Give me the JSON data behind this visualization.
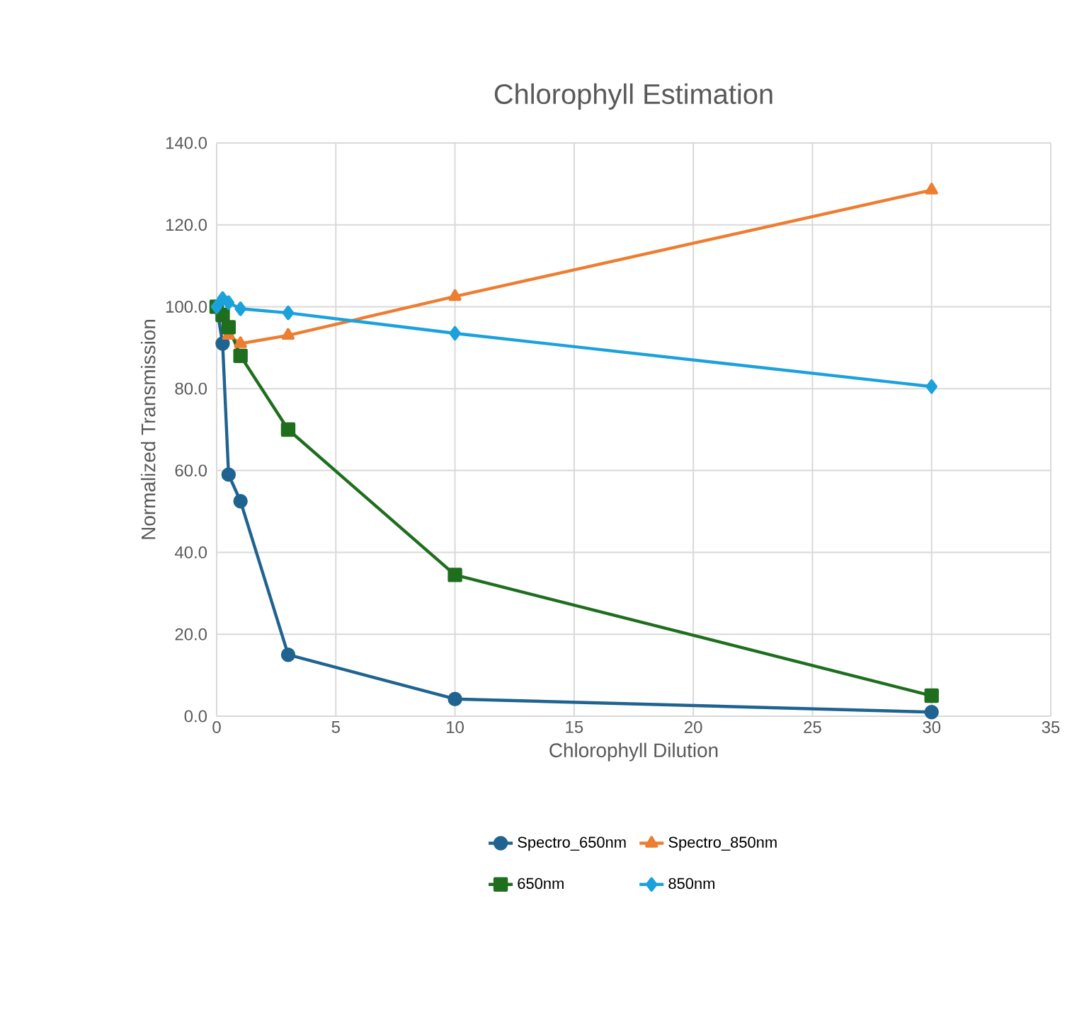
{
  "chart_data": {
    "type": "line",
    "title": "Chlorophyll Estimation",
    "xlabel": "Chlorophyll Dilution",
    "ylabel": "Normalized Transmission",
    "x": [
      0,
      0.25,
      0.5,
      1,
      3,
      10,
      30
    ],
    "series": [
      {
        "name": "Spectro_650nm",
        "color": "#1f6391",
        "marker": "circle",
        "values": [
          100,
          91,
          59,
          52.5,
          15,
          4.2,
          1
        ]
      },
      {
        "name": "Spectro_850nm",
        "color": "#ed7d31",
        "marker": "triangle",
        "values": [
          100,
          null,
          93,
          91,
          93,
          102.5,
          128.5
        ]
      },
      {
        "name": "650nm",
        "color": "#1e6e1e",
        "marker": "square",
        "values": [
          100,
          98,
          95,
          88,
          70,
          34.5,
          5
        ]
      },
      {
        "name": "850nm",
        "color": "#1ba1dc",
        "marker": "diamond",
        "values": [
          100,
          102,
          101,
          99.5,
          98.5,
          93.5,
          80.5
        ]
      }
    ],
    "xlim": [
      0,
      35
    ],
    "xticks": [
      0,
      5,
      10,
      15,
      20,
      25,
      30,
      35
    ],
    "ylim": [
      0,
      140
    ],
    "yticks": [
      {
        "value": 0,
        "label": "0.0"
      },
      {
        "value": 20,
        "label": "20.0"
      },
      {
        "value": 40,
        "label": "40.0"
      },
      {
        "value": 60,
        "label": "60.0"
      },
      {
        "value": 80,
        "label": "80.0"
      },
      {
        "value": 100,
        "label": "100.0"
      },
      {
        "value": 120,
        "label": "120.0"
      },
      {
        "value": 140,
        "label": "140.0"
      }
    ],
    "grid": true,
    "legend": "bottom",
    "line_style": "solid"
  }
}
